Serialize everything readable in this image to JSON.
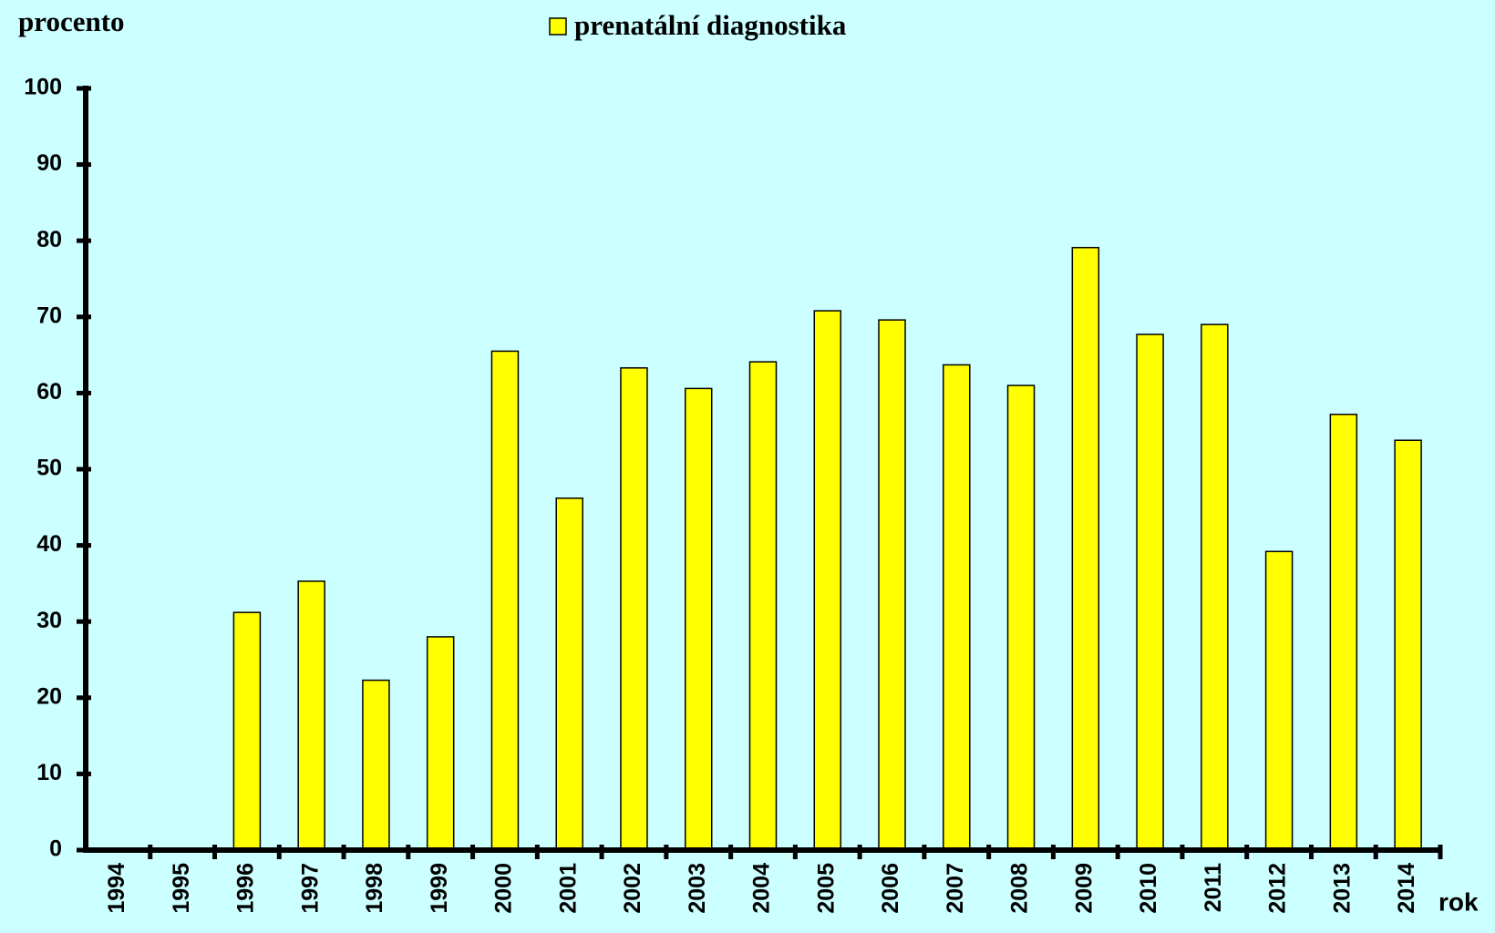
{
  "chart_data": {
    "type": "bar",
    "y_label": "procento",
    "x_label": "rok",
    "categories": [
      "1994",
      "1995",
      "1996",
      "1997",
      "1998",
      "1999",
      "2000",
      "2001",
      "2002",
      "2003",
      "2004",
      "2005",
      "2006",
      "2007",
      "2008",
      "2009",
      "2010",
      "2011",
      "2012",
      "2013",
      "2014"
    ],
    "series": [
      {
        "name": "prenatální diagnostika",
        "color": "#ffff00",
        "values": [
          0,
          0,
          31.2,
          35.3,
          22.3,
          28,
          65.5,
          46.2,
          63.3,
          60.6,
          64.1,
          70.8,
          69.6,
          63.7,
          61,
          79.1,
          67.7,
          69,
          39.2,
          57.2,
          53.8
        ]
      }
    ],
    "ylim": [
      0,
      100
    ],
    "yticks": [
      0,
      10,
      20,
      30,
      40,
      50,
      60,
      70,
      80,
      90,
      100
    ],
    "grid": false,
    "legend": "top"
  }
}
